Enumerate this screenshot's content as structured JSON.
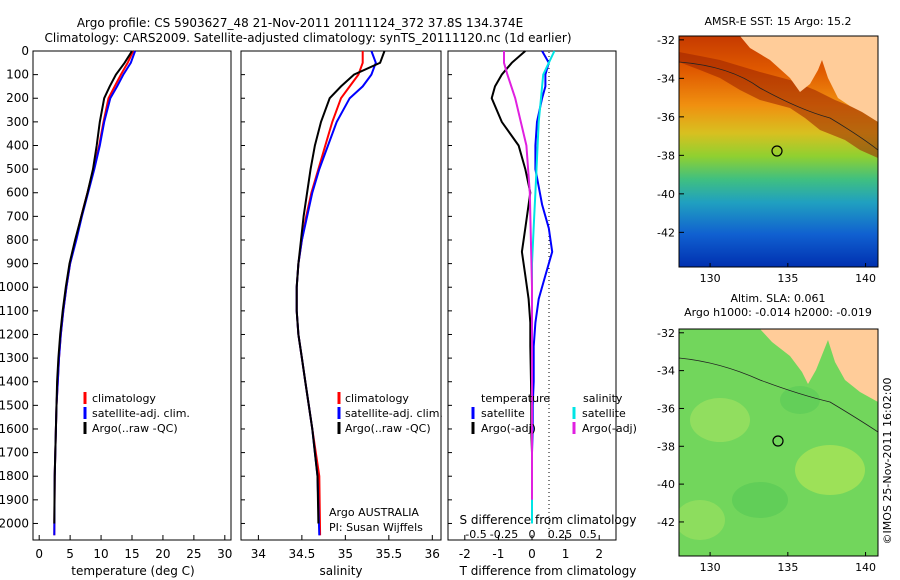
{
  "title": {
    "line1": "Argo profile: CS 5903627_48 21-Nov-2011 20111124_372 37.8S 134.374E",
    "line2": "Climatology: CARS2009. Satellite-adjusted climatology: synTS_20111120.nc (1d earlier)"
  },
  "depth_ticks": [
    "0",
    "100",
    "200",
    "300",
    "400",
    "500",
    "600",
    "700",
    "800",
    "900",
    "1000",
    "1100",
    "1200",
    "1300",
    "1400",
    "1500",
    "1600",
    "1700",
    "1800",
    "1900",
    "2000"
  ],
  "colors": {
    "climatology": "#ff0000",
    "satellite": "#0000ff",
    "argo": "#000000",
    "sal_sat": "#00e5e5",
    "sal_argo": "#e020e0",
    "land": "#ffcc99",
    "ocean_bg": "#7fd66a"
  },
  "panels": {
    "temperature": {
      "xlabel": "temperature (deg C)",
      "xticks": [
        "0",
        "5",
        "10",
        "15",
        "20",
        "25",
        "30"
      ]
    },
    "salinity": {
      "xlabel": "salinity",
      "xticks": [
        "34",
        "34.5",
        "35",
        "35.5",
        "36"
      ],
      "note1": "Argo AUSTRALIA",
      "note2": "PI: Susan Wijffels"
    },
    "difference": {
      "xlabel": "T difference from climatology",
      "xticks": [
        "-2",
        "-1",
        "0",
        "1",
        "2"
      ],
      "top_label": "S difference from climatology",
      "top_ticks": [
        "-0.5",
        "-0.25",
        "0",
        "0.25",
        "0.5"
      ]
    }
  },
  "legend_profiles": {
    "climatology": "climatology",
    "satellite": "satellite-adj. clim.",
    "argo": "Argo(..raw -QC)"
  },
  "legend_diff": {
    "temp_head": "temperature",
    "sal_head": "salinity",
    "satellite": "satellite",
    "argo": "Argo(-adj)"
  },
  "maps": {
    "sst_title": "AMSR-E SST: 15 Argo: 15.2",
    "sla_title1": "Altim. SLA: 0.061",
    "sla_title2": "Argo h1000: -0.014 h2000: -0.019",
    "yticks": [
      "-32",
      "-34",
      "-36",
      "-38",
      "-40",
      "-42"
    ],
    "xticks": [
      "130",
      "135",
      "140"
    ]
  },
  "credit": "©IMOS 25-Nov-2011 16:02:00",
  "chart_data": [
    {
      "type": "line",
      "xlabel": "temperature (deg C)",
      "ylabel": "",
      "xlim": [
        -1,
        31
      ],
      "ylim": [
        2070,
        0
      ],
      "series": [
        {
          "name": "climatology",
          "x": [
            15.2,
            14.3,
            13.2,
            12.2,
            11.2,
            10.4,
            9.7,
            8.8,
            7.8,
            6.8,
            5.9,
            5.0,
            4.4,
            3.9,
            3.5,
            3.2,
            3.0,
            2.8,
            2.7,
            2.6,
            2.5,
            2.45
          ],
          "y": [
            0,
            50,
            100,
            150,
            200,
            300,
            400,
            500,
            600,
            700,
            800,
            900,
            1000,
            1100,
            1200,
            1300,
            1400,
            1500,
            1600,
            1700,
            1800,
            2050
          ]
        },
        {
          "name": "satellite-adj. clim.",
          "x": [
            15.5,
            14.8,
            13.6,
            12.6,
            11.5,
            10.5,
            9.8,
            8.9,
            7.9,
            6.9,
            6.0,
            5.0,
            4.4,
            3.9,
            3.5,
            3.2,
            3.0,
            2.8,
            2.7,
            2.6,
            2.5,
            2.45
          ],
          "y": [
            0,
            50,
            100,
            150,
            200,
            300,
            400,
            500,
            600,
            700,
            800,
            900,
            1000,
            1100,
            1200,
            1300,
            1400,
            1500,
            1600,
            1700,
            1800,
            2050
          ]
        },
        {
          "name": "Argo(..raw -QC)",
          "x": [
            15.0,
            13.8,
            12.4,
            11.4,
            10.5,
            9.8,
            9.3,
            8.7,
            7.8,
            6.8,
            5.8,
            4.9,
            4.3,
            3.8,
            3.4,
            3.1,
            2.9,
            2.8,
            2.7,
            2.6,
            2.5,
            2.45
          ],
          "y": [
            0,
            50,
            100,
            150,
            200,
            300,
            400,
            500,
            600,
            700,
            800,
            900,
            1000,
            1100,
            1200,
            1300,
            1400,
            1500,
            1600,
            1700,
            1800,
            2000
          ]
        }
      ]
    },
    {
      "type": "line",
      "xlabel": "salinity",
      "ylabel": "",
      "xlim": [
        33.8,
        36.1
      ],
      "ylim": [
        2070,
        0
      ],
      "series": [
        {
          "name": "climatology",
          "x": [
            35.2,
            35.2,
            35.15,
            35.05,
            34.95,
            34.85,
            34.77,
            34.69,
            34.61,
            34.55,
            34.5,
            34.46,
            34.44,
            34.44,
            34.46,
            34.5,
            34.54,
            34.58,
            34.62,
            34.66,
            34.7,
            34.71
          ],
          "y": [
            0,
            50,
            100,
            150,
            200,
            300,
            400,
            500,
            600,
            700,
            800,
            900,
            1000,
            1100,
            1200,
            1300,
            1400,
            1500,
            1600,
            1700,
            1800,
            2050
          ]
        },
        {
          "name": "satellite-adj. clim.",
          "x": [
            35.3,
            35.35,
            35.3,
            35.2,
            35.05,
            34.9,
            34.8,
            34.7,
            34.62,
            34.56,
            34.5,
            34.46,
            34.44,
            34.44,
            34.46,
            34.5,
            34.54,
            34.58,
            34.62,
            34.65,
            34.68,
            34.7
          ],
          "y": [
            0,
            50,
            100,
            150,
            200,
            300,
            400,
            500,
            600,
            700,
            800,
            900,
            1000,
            1100,
            1200,
            1300,
            1400,
            1500,
            1600,
            1700,
            1800,
            2050
          ]
        },
        {
          "name": "Argo(..raw -QC)",
          "x": [
            35.45,
            35.4,
            35.1,
            34.95,
            34.82,
            34.72,
            34.65,
            34.6,
            34.56,
            34.52,
            34.49,
            34.46,
            34.44,
            34.44,
            34.46,
            34.5,
            34.54,
            34.58,
            34.62,
            34.65,
            34.68,
            34.69
          ],
          "y": [
            0,
            50,
            100,
            150,
            200,
            300,
            400,
            500,
            600,
            700,
            800,
            900,
            1000,
            1100,
            1200,
            1300,
            1400,
            1500,
            1600,
            1700,
            1800,
            2000
          ]
        }
      ]
    },
    {
      "type": "line",
      "xlabel": "T difference from climatology",
      "ylabel": "",
      "xlim": [
        -2.5,
        2.5
      ],
      "ylim": [
        2070,
        0
      ],
      "series": [
        {
          "name": "temperature satellite",
          "x": [
            0.3,
            0.5,
            0.4,
            0.4,
            0.3,
            0.15,
            0.1,
            0.1,
            0.3,
            0.5,
            0.6,
            0.4,
            0.2,
            0.1,
            0.05,
            0.05,
            0.02,
            0.02,
            0.0,
            0.0,
            0.0
          ],
          "y": [
            0,
            50,
            100,
            150,
            200,
            300,
            400,
            500,
            650,
            750,
            850,
            950,
            1050,
            1150,
            1250,
            1400,
            1500,
            1600,
            1700,
            1800,
            2000
          ]
        },
        {
          "name": "temperature Argo(-adj)",
          "x": [
            -0.2,
            -0.6,
            -0.9,
            -1.1,
            -1.2,
            -0.9,
            -0.4,
            -0.2,
            -0.05,
            -0.2,
            -0.3,
            -0.2,
            -0.1,
            -0.05,
            -0.05,
            -0.03,
            -0.02,
            -0.02,
            0.0,
            0.0
          ],
          "y": [
            0,
            50,
            100,
            150,
            200,
            300,
            400,
            500,
            600,
            750,
            850,
            950,
            1050,
            1150,
            1250,
            1400,
            1500,
            1600,
            1700,
            1900
          ]
        },
        {
          "name": "salinity satellite",
          "x": [
            0.2,
            0.15,
            0.1,
            0.08,
            0.06,
            0.05,
            0.04,
            0.03,
            0.02,
            0.01,
            0.0,
            0.0,
            0.0,
            0.0,
            0.0,
            0.0,
            0.0
          ],
          "y": [
            0,
            50,
            100,
            200,
            300,
            400,
            500,
            600,
            700,
            800,
            900,
            1000,
            1200,
            1400,
            1600,
            1800,
            2000
          ]
        },
        {
          "name": "salinity Argo(-adj)",
          "x": [
            -0.25,
            -0.25,
            -0.22,
            -0.15,
            -0.05,
            -0.02,
            -0.01,
            0.0,
            0.0,
            0.0,
            0.0
          ],
          "y": [
            0,
            50,
            100,
            200,
            400,
            600,
            800,
            1000,
            1200,
            1500,
            1900
          ]
        }
      ]
    }
  ]
}
